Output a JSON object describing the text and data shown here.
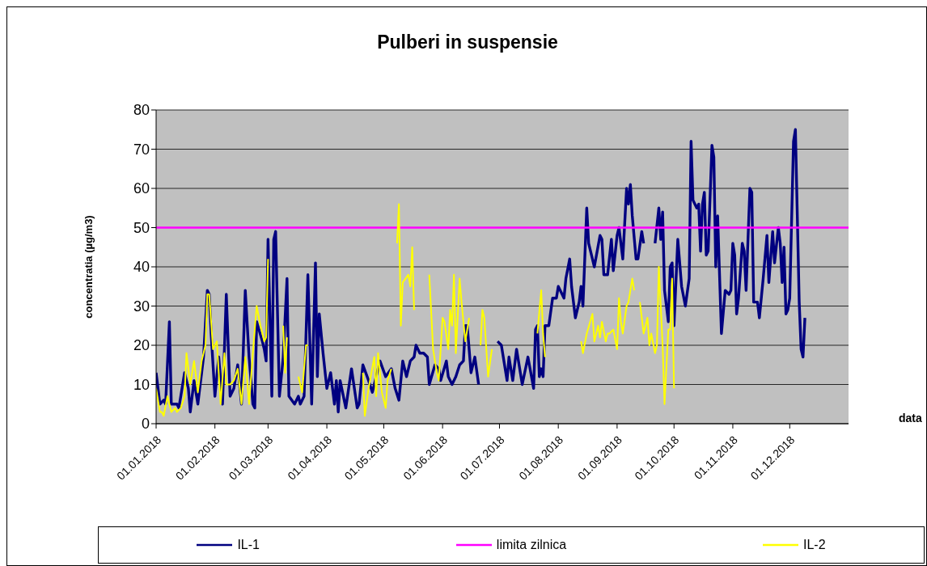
{
  "chart_data": {
    "type": "line",
    "title": "Pulberi in suspensie",
    "xlabel": "data",
    "ylabel": "concentratia  (µg/m3)",
    "xlim": [
      "2018-01-01",
      "2019-01-01"
    ],
    "xticks": [
      {
        "value": "2018-01-01",
        "label": "01.01.2018"
      },
      {
        "value": "2018-02-01",
        "label": "01.02.2018"
      },
      {
        "value": "2018-03-01",
        "label": "01.03.2018"
      },
      {
        "value": "2018-04-01",
        "label": "01.04.2018"
      },
      {
        "value": "2018-05-01",
        "label": "01.05.2018"
      },
      {
        "value": "2018-06-01",
        "label": "01.06.2018"
      },
      {
        "value": "2018-07-01",
        "label": "01.07.2018"
      },
      {
        "value": "2018-08-01",
        "label": "01.08.2018"
      },
      {
        "value": "2018-09-01",
        "label": "01.09.2018"
      },
      {
        "value": "2018-10-01",
        "label": "01.10.2018"
      },
      {
        "value": "2018-11-01",
        "label": "01.11.2018"
      },
      {
        "value": "2018-12-01",
        "label": "01.12.2018"
      }
    ],
    "ylim": [
      0,
      80
    ],
    "yticks": [
      0,
      10,
      20,
      30,
      40,
      50,
      60,
      70,
      80
    ],
    "grid": "y",
    "legend": "bottom",
    "series": [
      {
        "name": "IL-1",
        "color": "#000080",
        "x": [
          "2018-01-01",
          "2018-01-03",
          "2018-01-05",
          "2018-01-06",
          "2018-01-08",
          "2018-01-09",
          "2018-01-12",
          "2018-01-13",
          "2018-01-16",
          "2018-01-18",
          "2018-01-19",
          "2018-01-21",
          "2018-01-23",
          "2018-01-25",
          "2018-01-26",
          "2018-01-28",
          "2018-01-29",
          "2018-01-30",
          "2018-02-01",
          "2018-02-03",
          "2018-02-05",
          "2018-02-07",
          "2018-02-09",
          "2018-02-11",
          "2018-02-13",
          "2018-02-15",
          "2018-02-17",
          "2018-02-19",
          "2018-02-21",
          "2018-02-22",
          "2018-02-23",
          "2018-02-26",
          "2018-02-27",
          "2018-02-28",
          "2018-03-01",
          "2018-03-03",
          "2018-03-04",
          "2018-03-05",
          "2018-03-07",
          "2018-03-09",
          "2018-03-11",
          "2018-03-12",
          "2018-03-15",
          "2018-03-17",
          "2018-03-18",
          "2018-03-20",
          "2018-03-22",
          "2018-03-24",
          "2018-03-26",
          "2018-03-27",
          "2018-03-28",
          "2018-03-30",
          "2018-04-01",
          "2018-04-03",
          "2018-04-05",
          "2018-04-06",
          "2018-04-07",
          "2018-04-08",
          "2018-04-11",
          "2018-04-14",
          "2018-04-17",
          "2018-04-18",
          "2018-04-20",
          "2018-04-23",
          "2018-04-25",
          "2018-04-27",
          "2018-04-29",
          "2018-05-02",
          "2018-05-05",
          "2018-05-07",
          "2018-05-09",
          "2018-05-11",
          "2018-05-13",
          "2018-05-15",
          "2018-05-17",
          "2018-05-18",
          "2018-05-20",
          "2018-05-22",
          "2018-05-24",
          "2018-05-25",
          "2018-05-28",
          "2018-05-30",
          "2018-05-31",
          "2018-06-03",
          "2018-06-04",
          "2018-06-06",
          "2018-06-08",
          "2018-06-10",
          "2018-06-12",
          "2018-06-13",
          "2018-06-14",
          "2018-06-16",
          "2018-06-18",
          "2018-06-20",
          "2018-06-25",
          "2018-06-30",
          "2018-07-02",
          "2018-07-05",
          "2018-07-06",
          "2018-07-08",
          "2018-07-10",
          "2018-07-12",
          "2018-07-13",
          "2018-07-16",
          "2018-07-19",
          "2018-07-20",
          "2018-07-21",
          "2018-07-22",
          "2018-07-23",
          "2018-07-24",
          "2018-07-25",
          "2018-07-27",
          "2018-07-29",
          "2018-07-31",
          "2018-08-01",
          "2018-08-02",
          "2018-08-04",
          "2018-08-05",
          "2018-08-07",
          "2018-08-08",
          "2018-08-10",
          "2018-08-12",
          "2018-08-13",
          "2018-08-14",
          "2018-08-16",
          "2018-08-17",
          "2018-08-20",
          "2018-08-23",
          "2018-08-24",
          "2018-08-25",
          "2018-08-27",
          "2018-08-29",
          "2018-08-30",
          "2018-09-01",
          "2018-09-02",
          "2018-09-04",
          "2018-09-06",
          "2018-09-07",
          "2018-09-08",
          "2018-09-09",
          "2018-09-11",
          "2018-09-12",
          "2018-09-14",
          "2018-09-15",
          "2018-09-18",
          "2018-09-21",
          "2018-09-23",
          "2018-09-24",
          "2018-09-25",
          "2018-09-26",
          "2018-09-28",
          "2018-09-29",
          "2018-09-30",
          "2018-10-01",
          "2018-10-03",
          "2018-10-05",
          "2018-10-07",
          "2018-10-09",
          "2018-10-10",
          "2018-10-11",
          "2018-10-13",
          "2018-10-14",
          "2018-10-15",
          "2018-10-16",
          "2018-10-17",
          "2018-10-18",
          "2018-10-19",
          "2018-10-21",
          "2018-10-22",
          "2018-10-23",
          "2018-10-24",
          "2018-10-26",
          "2018-10-28",
          "2018-10-30",
          "2018-10-31",
          "2018-11-01",
          "2018-11-02",
          "2018-11-03",
          "2018-11-04",
          "2018-11-06",
          "2018-11-07",
          "2018-11-08",
          "2018-11-10",
          "2018-11-11",
          "2018-11-12",
          "2018-11-14",
          "2018-11-15",
          "2018-11-16",
          "2018-11-17",
          "2018-11-19",
          "2018-11-20",
          "2018-11-22",
          "2018-11-23",
          "2018-11-25",
          "2018-11-26",
          "2018-11-27",
          "2018-11-28",
          "2018-11-29",
          "2018-11-30",
          "2018-12-01",
          "2018-12-03",
          "2018-12-04",
          "2018-12-06",
          "2018-12-07",
          "2018-12-08",
          "2018-12-09"
        ],
        "values": [
          13,
          5,
          6,
          5,
          26,
          5,
          5,
          4,
          13,
          9,
          3,
          11,
          5,
          13,
          17,
          34,
          33,
          23,
          7,
          17,
          5,
          33,
          7,
          9,
          15,
          5,
          34,
          17,
          5,
          4,
          26,
          21,
          19,
          16,
          47,
          7,
          47,
          49,
          7,
          17,
          37,
          7,
          5,
          7,
          5,
          7,
          38,
          5,
          41,
          12,
          28,
          18,
          9,
          13,
          5,
          11,
          3,
          11,
          4,
          14,
          4,
          5,
          15,
          11,
          8,
          12,
          16,
          12,
          14,
          9,
          6,
          16,
          12,
          16,
          17,
          20,
          18,
          18,
          17,
          10,
          15,
          14,
          11,
          16,
          12,
          10,
          12,
          15,
          16,
          25,
          25,
          13,
          17,
          10,
          null,
          21,
          20,
          11,
          17,
          11,
          19,
          13,
          10,
          17,
          9,
          24,
          25,
          12,
          14,
          12,
          25,
          25,
          32,
          32,
          35,
          34,
          32,
          37,
          42,
          35,
          27,
          31,
          35,
          30,
          55,
          46,
          40,
          48,
          47,
          38,
          38,
          47,
          39,
          48,
          50,
          42,
          60,
          56,
          61,
          53,
          42,
          42,
          49,
          46,
          null,
          46,
          55,
          47,
          54,
          34,
          26,
          40,
          41,
          25,
          47,
          35,
          30,
          37,
          72,
          57,
          55,
          56,
          44,
          56,
          59,
          43,
          44,
          71,
          68,
          40,
          53,
          23,
          34,
          33,
          34,
          46,
          43,
          28,
          32,
          46,
          44,
          34,
          60,
          59,
          31,
          31,
          27,
          32,
          37,
          48,
          36,
          49,
          41,
          50,
          46,
          36,
          45,
          28,
          29,
          32,
          72,
          75,
          31,
          19,
          17,
          27
        ]
      },
      {
        "name": "limita zilnica",
        "color": "#ff00ff",
        "x": [
          "2018-01-01",
          "2019-01-01"
        ],
        "values": [
          50,
          50
        ]
      },
      {
        "name": "IL-2",
        "color": "#ffff00",
        "x": [
          "2018-01-01",
          "2018-01-03",
          "2018-01-04",
          "2018-01-05",
          "2018-01-07",
          "2018-01-09",
          "2018-01-11",
          "2018-01-12",
          "2018-01-14",
          "2018-01-16",
          "2018-01-17",
          "2018-01-19",
          "2018-01-21",
          "2018-01-23",
          "2018-01-25",
          "2018-01-27",
          "2018-01-28",
          "2018-01-29",
          "2018-01-31",
          "2018-02-02",
          "2018-02-04",
          "2018-02-06",
          "2018-02-07",
          "2018-02-09",
          "2018-02-11",
          "2018-02-13",
          "2018-02-15",
          "2018-02-17",
          "2018-02-19",
          "2018-02-21",
          "2018-02-23",
          "2018-02-25",
          "2018-02-27",
          "2018-02-28",
          "2018-03-01",
          "2018-03-02",
          "2018-03-09",
          "2018-03-10",
          "2018-03-11",
          "2018-03-14",
          "2018-03-17",
          "2018-03-19",
          "2018-03-21",
          "2018-03-22",
          "2018-04-06",
          "2018-04-20",
          "2018-04-21",
          "2018-04-23",
          "2018-04-26",
          "2018-04-27",
          "2018-04-28",
          "2018-04-30",
          "2018-05-02",
          "2018-05-03",
          "2018-05-05",
          "2018-05-06",
          "2018-05-08",
          "2018-05-09",
          "2018-05-10",
          "2018-05-11",
          "2018-05-14",
          "2018-05-15",
          "2018-05-16",
          "2018-05-17",
          "2018-05-21",
          "2018-05-25",
          "2018-05-27",
          "2018-05-29",
          "2018-05-30",
          "2018-06-01",
          "2018-06-02",
          "2018-06-04",
          "2018-06-05",
          "2018-06-06",
          "2018-06-07",
          "2018-06-08",
          "2018-06-10",
          "2018-06-11",
          "2018-06-13",
          "2018-06-15",
          "2018-06-18",
          "2018-06-21",
          "2018-06-22",
          "2018-06-23",
          "2018-06-25",
          "2018-06-27",
          "2018-07-10",
          "2018-07-21",
          "2018-07-23",
          "2018-07-24",
          "2018-07-25",
          "2018-08-04",
          "2018-08-13",
          "2018-08-14",
          "2018-08-16",
          "2018-08-19",
          "2018-08-20",
          "2018-08-22",
          "2018-08-23",
          "2018-08-24",
          "2018-08-26",
          "2018-08-27",
          "2018-08-28",
          "2018-08-30",
          "2018-09-01",
          "2018-09-02",
          "2018-09-03",
          "2018-09-04",
          "2018-09-06",
          "2018-09-07",
          "2018-09-09",
          "2018-09-10",
          "2018-09-11",
          "2018-09-13",
          "2018-09-15",
          "2018-09-17",
          "2018-09-18",
          "2018-09-19",
          "2018-09-21",
          "2018-09-22",
          "2018-09-23",
          "2018-09-25",
          "2018-09-26",
          "2018-09-28",
          "2018-09-29",
          "2018-09-30",
          "2018-10-01"
        ],
        "values": [
          9,
          3,
          3,
          2,
          7,
          3,
          4,
          3,
          4,
          7,
          18,
          10,
          16,
          8,
          16,
          20,
          33,
          33,
          19,
          21,
          5,
          18,
          10,
          10,
          11,
          14,
          5,
          17,
          5,
          18,
          30,
          25,
          21,
          22,
          42,
          null,
          25,
          13,
          22,
          null,
          12,
          8,
          20,
          20,
          null,
          13,
          2,
          9,
          17,
          7,
          18,
          8,
          4,
          11,
          14,
          null,
          46,
          56,
          25,
          36,
          38,
          35,
          45,
          29,
          null,
          38,
          19,
          13,
          11,
          27,
          26,
          19,
          29,
          25,
          38,
          18,
          37,
          31,
          21,
          27,
          null,
          20,
          29,
          27,
          12,
          19,
          null,
          23,
          34,
          23,
          17,
          null,
          21,
          18,
          23,
          28,
          21,
          25,
          22,
          26,
          21,
          23,
          23,
          24,
          19,
          32,
          26,
          23,
          30,
          31,
          37,
          34,
          null,
          31,
          23,
          27,
          20,
          23,
          18,
          20,
          40,
          20,
          5,
          24,
          24,
          37,
          9
        ]
      }
    ]
  }
}
